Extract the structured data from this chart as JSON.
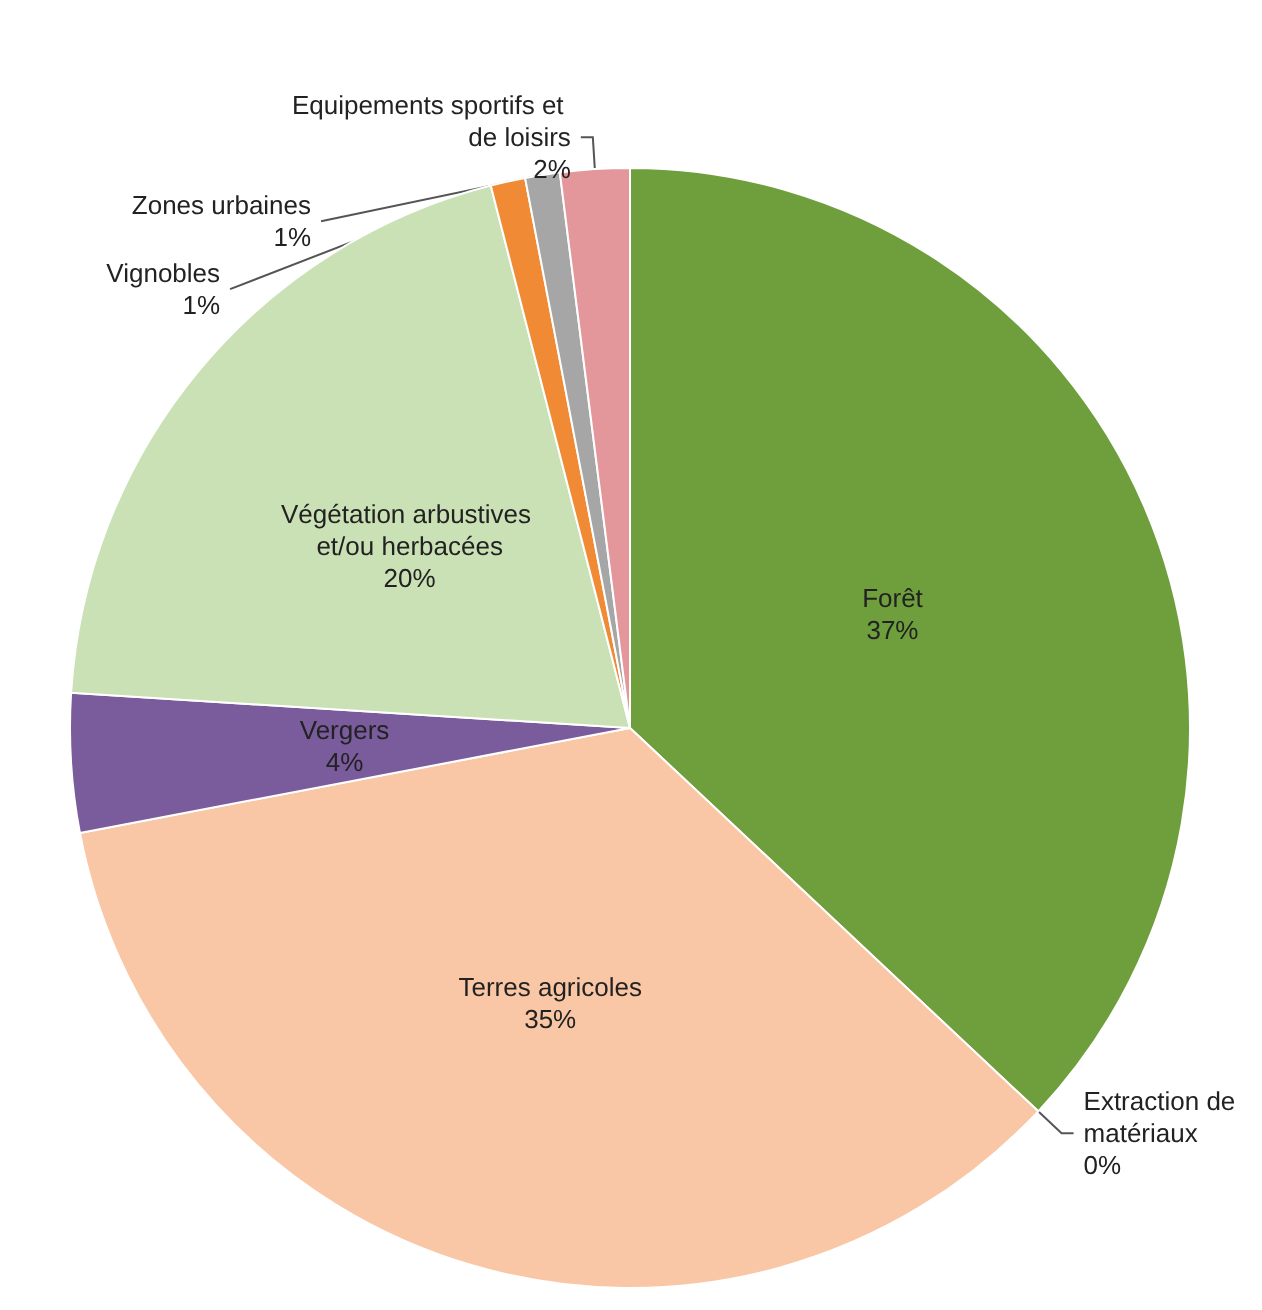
{
  "chart_data": {
    "type": "pie",
    "categories": [
      "Forêt",
      "Extraction de matériaux",
      "Terres agricoles",
      "Vergers",
      "Végétation arbustives et/ou herbacées",
      "Vignobles",
      "Zones urbaines",
      "Equipements sportifs et de loisirs"
    ],
    "values": [
      37,
      0,
      35,
      4,
      20,
      1,
      1,
      2
    ],
    "value_labels": [
      "37%",
      "0%",
      "35%",
      "4%",
      "20%",
      "1%",
      "1%",
      "2%"
    ],
    "colors": [
      "#6f9e3c",
      "#c9302c",
      "#f9c7a5",
      "#7a5b9c",
      "#c9e1b5",
      "#f08a34",
      "#a6a6a6",
      "#e3979a"
    ]
  }
}
